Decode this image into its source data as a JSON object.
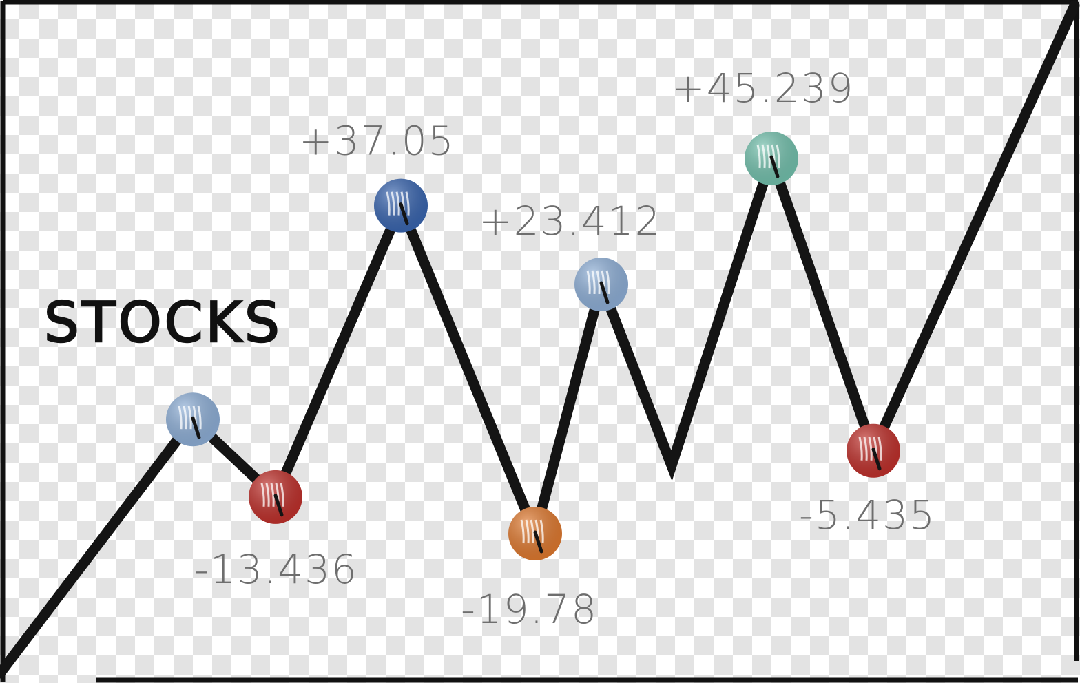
{
  "chart_data": {
    "type": "line",
    "title": "STOCKS",
    "series": [
      {
        "labels": [
          "",
          "-13.436",
          "+37.05",
          "-19.78",
          "+23.412",
          "",
          "+45.239",
          "-5.435"
        ],
        "values": [
          0,
          -13.436,
          37.05,
          -19.78,
          23.412,
          -8,
          45.239,
          -5.435
        ],
        "marker_colors": [
          "#8fb0d8",
          "#c0312c",
          "#3a66b0",
          "#e07a30",
          "#8fb0d8",
          "",
          "#74c2ae",
          "#c0312c"
        ]
      }
    ],
    "ylim": [
      -50,
      50
    ],
    "grid": false,
    "background": "checkerboard"
  }
}
